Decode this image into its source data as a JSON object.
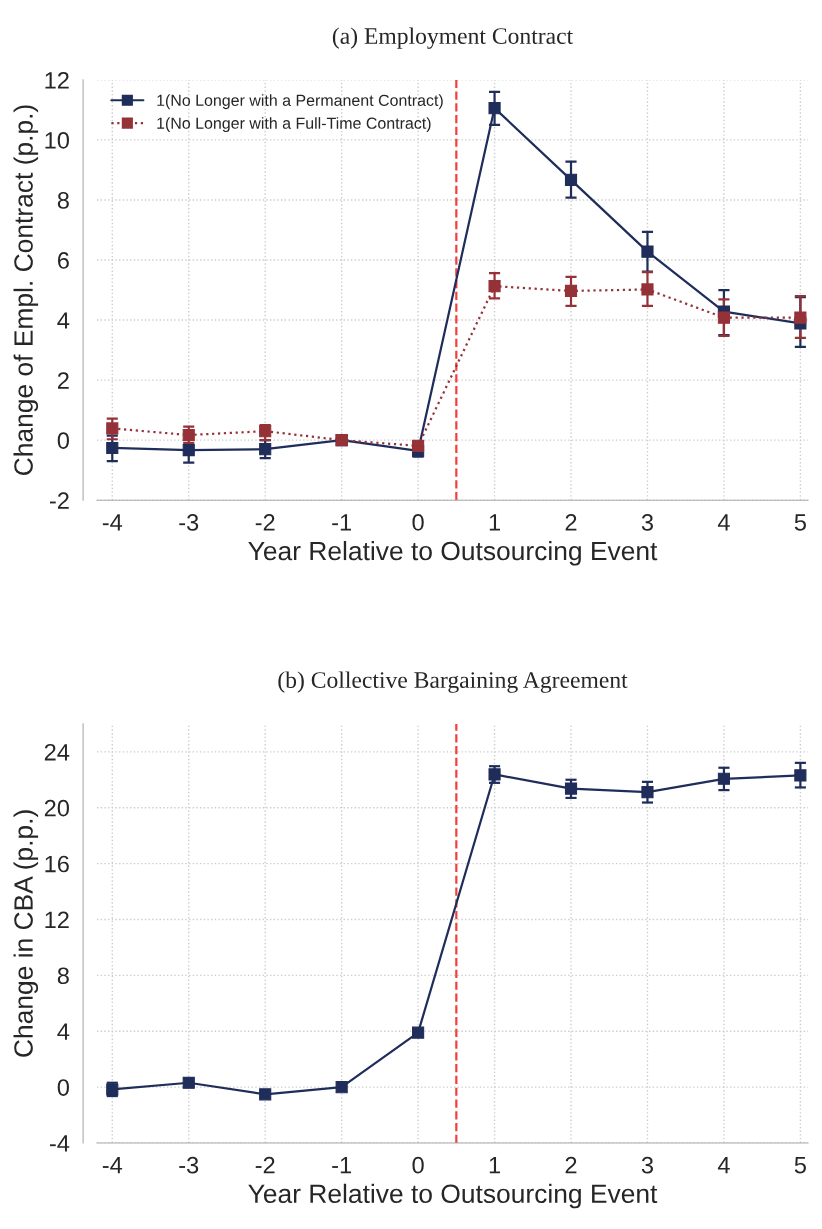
{
  "chart_data": [
    {
      "type": "line",
      "title": "(a) Employment Contract",
      "xlabel": "Year Relative to Outsourcing Event",
      "ylabel": "Change of Empl. Contract (p.p.)",
      "x": [
        -4,
        -3,
        -2,
        -1,
        0,
        1,
        2,
        3,
        4,
        5
      ],
      "xlim": [
        -4.2,
        5.1
      ],
      "xticks": [
        -4,
        -3,
        -2,
        -1,
        0,
        1,
        2,
        3,
        4,
        5
      ],
      "ylim": [
        -2,
        12
      ],
      "yticks": [
        -2,
        0,
        2,
        4,
        6,
        8,
        10,
        12
      ],
      "grid": true,
      "legend": "top left",
      "marker": "square",
      "ref_lines": [
        {
          "axis": "x",
          "value": 0.5,
          "color": "#f0403c",
          "line_style": "dashed"
        }
      ],
      "series": [
        {
          "name": "1(No Longer with a Permanent Contract)",
          "color": "#1f2d5a",
          "line_style": "solid",
          "values": [
            -0.26,
            -0.33,
            -0.3,
            0,
            -0.36,
            11.06,
            8.67,
            6.28,
            4.28,
            3.89
          ],
          "errors": [
            [
              -0.7,
              0.15
            ],
            [
              -0.75,
              -0.33
            ],
            [
              -0.6,
              0.0
            ],
            null,
            [
              -0.55,
              -0.36
            ],
            [
              10.5,
              11.6
            ],
            [
              8.08,
              9.28
            ],
            [
              5.61,
              6.94
            ],
            [
              3.5,
              5.0
            ],
            [
              3.11,
              4.76
            ]
          ]
        },
        {
          "name": "1(No Longer with a Full-Time Contract)",
          "color": "#953238",
          "line_style": "dotted",
          "values": [
            0.39,
            0.17,
            0.3,
            0,
            -0.19,
            5.13,
            4.97,
            5.02,
            4.08,
            4.08
          ],
          "errors": [
            [
              0.03,
              0.72
            ],
            [
              -0.1,
              0.45
            ],
            [
              0.0,
              0.5
            ],
            null,
            [
              -0.35,
              -0.05
            ],
            [
              4.72,
              5.56
            ],
            [
              4.47,
              5.44
            ],
            [
              4.47,
              5.6
            ],
            [
              3.47,
              4.69
            ],
            [
              3.41,
              4.8
            ]
          ]
        }
      ]
    },
    {
      "type": "line",
      "title": "(b) Collective Bargaining Agreement",
      "xlabel": "Year Relative to Outsourcing Event",
      "ylabel": "Change in CBA (p.p.)",
      "x": [
        -4,
        -3,
        -2,
        -1,
        0,
        1,
        2,
        3,
        4,
        5
      ],
      "xlim": [
        -4.2,
        5.1
      ],
      "xticks": [
        -4,
        -3,
        -2,
        -1,
        0,
        1,
        2,
        3,
        4,
        5
      ],
      "ylim": [
        -4,
        26
      ],
      "yticks": [
        -4,
        0,
        4,
        8,
        12,
        16,
        20,
        24
      ],
      "grid": true,
      "marker": "square",
      "ref_lines": [
        {
          "axis": "x",
          "value": 0.5,
          "color": "#f0403c",
          "line_style": "dashed"
        }
      ],
      "series": [
        {
          "color": "#1f2d5a",
          "line_style": "solid",
          "values": [
            -0.17,
            0.31,
            -0.52,
            0,
            3.9,
            22.38,
            21.37,
            21.11,
            22.07,
            22.31
          ],
          "errors": [
            [
              -0.64,
              0.31
            ],
            [
              0.0,
              0.6
            ],
            null,
            null,
            [
              3.7,
              4.1
            ],
            [
              21.78,
              22.97
            ],
            [
              20.7,
              22.0
            ],
            [
              20.37,
              21.85
            ],
            [
              21.26,
              22.86
            ],
            [
              21.45,
              23.21
            ]
          ]
        }
      ]
    }
  ]
}
